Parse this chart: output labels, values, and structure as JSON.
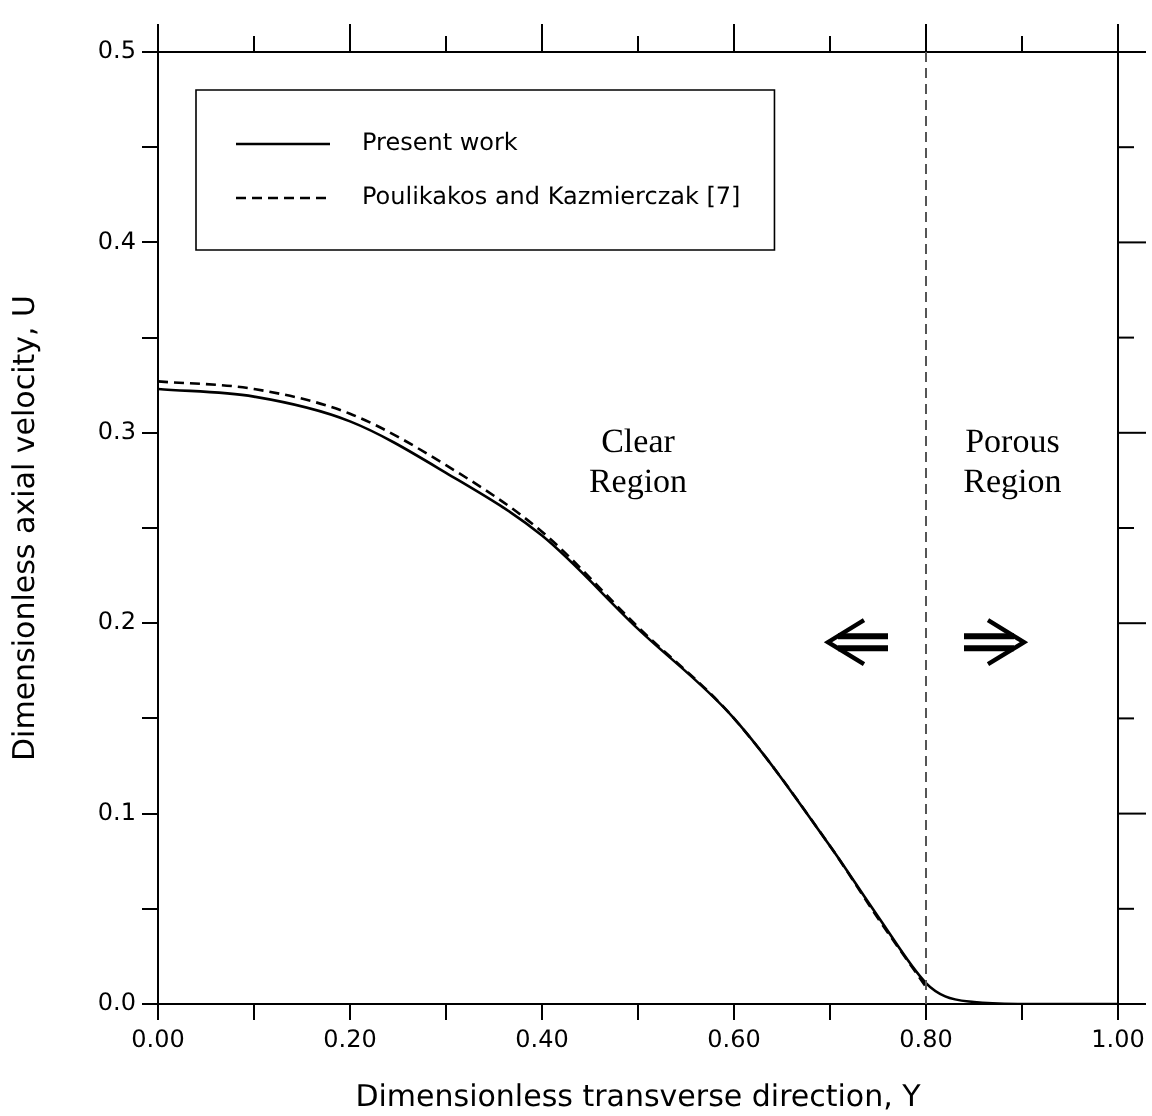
{
  "chart_data": {
    "type": "line",
    "xlabel": "Dimensionless transverse direction, Y",
    "ylabel": "Dimensionless axial velocity, U",
    "xlim": [
      0,
      1
    ],
    "ylim": [
      0,
      0.5
    ],
    "xticks": [
      {
        "value": 0,
        "label": "0.00"
      },
      {
        "value": 0.1,
        "label": null
      },
      {
        "value": 0.2,
        "label": "0.20"
      },
      {
        "value": 0.3,
        "label": null
      },
      {
        "value": 0.4,
        "label": "0.40"
      },
      {
        "value": 0.5,
        "label": null
      },
      {
        "value": 0.6,
        "label": "0.60"
      },
      {
        "value": 0.7,
        "label": null
      },
      {
        "value": 0.8,
        "label": "0.80"
      },
      {
        "value": 0.9,
        "label": null
      },
      {
        "value": 1,
        "label": "1.00"
      }
    ],
    "yticks": [
      {
        "value": 0,
        "label": "0.0"
      },
      {
        "value": 0.05,
        "label": null
      },
      {
        "value": 0.1,
        "label": "0.1"
      },
      {
        "value": 0.15,
        "label": null
      },
      {
        "value": 0.2,
        "label": "0.2"
      },
      {
        "value": 0.25,
        "label": null
      },
      {
        "value": 0.3,
        "label": "0.3"
      },
      {
        "value": 0.35,
        "label": null
      },
      {
        "value": 0.4,
        "label": "0.4"
      },
      {
        "value": 0.45,
        "label": null
      },
      {
        "value": 0.5,
        "label": "0.5"
      }
    ],
    "series": [
      {
        "name": "Present work",
        "color": "#000000",
        "line_style": "solid",
        "x": [
          0,
          0.1,
          0.2,
          0.3,
          0.4,
          0.5,
          0.6,
          0.7,
          0.75,
          0.8,
          0.82,
          0.85,
          0.9,
          1
        ],
        "values": [
          0.323,
          0.319,
          0.306,
          0.279,
          0.246,
          0.197,
          0.15,
          0.083,
          0.046,
          0.011,
          0.004,
          0.001,
          0,
          0
        ]
      },
      {
        "name": "Poulikakos and Kazmierczak [7]",
        "color": "#000000",
        "line_style": "dashed",
        "x": [
          0,
          0.1,
          0.2,
          0.3,
          0.4,
          0.5,
          0.6,
          0.7,
          0.75,
          0.8
        ],
        "values": [
          0.327,
          0.323,
          0.31,
          0.283,
          0.248,
          0.198,
          0.15,
          0.083,
          0.045,
          0.009
        ]
      }
    ],
    "ref_lines": [
      {
        "axis": "x",
        "value": 0.8,
        "line_style": "dashed",
        "color": "#555555"
      }
    ],
    "annotations": [
      "Clear\nRegion",
      "Porous\nRegion"
    ],
    "legend": "top left",
    "grid": false,
    "marker": "none"
  }
}
